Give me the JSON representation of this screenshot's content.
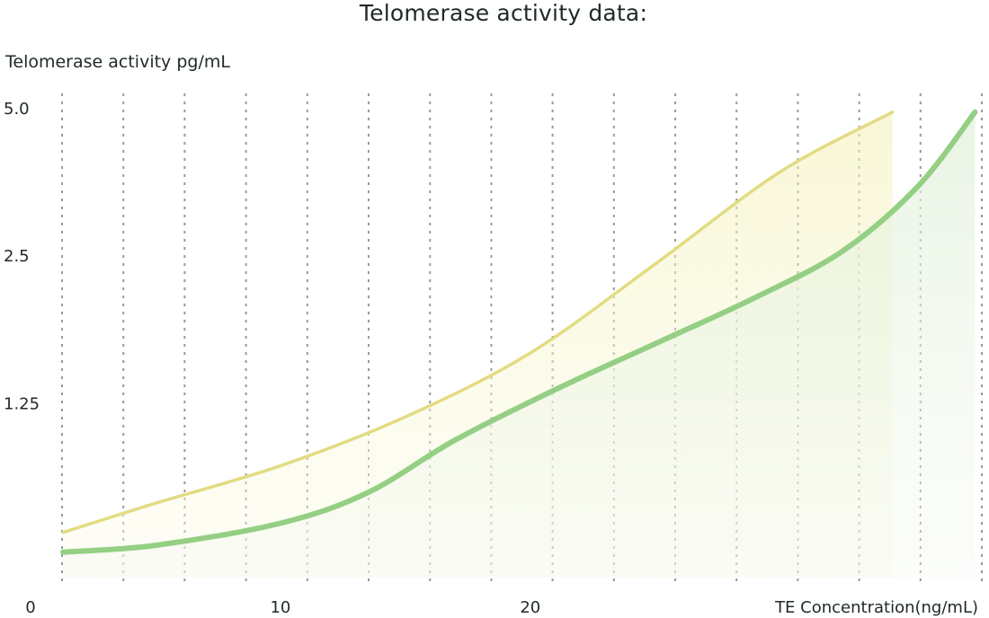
{
  "chart_data": {
    "type": "area",
    "title": "Telomerase activity data:",
    "ylabel": "Telomerase activity pg/mL",
    "xlabel": "TE Concentration(ng/mL)",
    "x_ticks": [
      0,
      10,
      20
    ],
    "y_ticks": [
      "1.25",
      "2.5",
      "5.0"
    ],
    "xlim": [
      0,
      38
    ],
    "y_scale": "log2",
    "ylim": [
      0.55,
      5.0
    ],
    "grid": "vertical dotted lines",
    "colors": {
      "yellow": "#e2dc82",
      "green": "#94cf84",
      "grid": "#9a9a9a",
      "text": "#1f2a24"
    },
    "series": [
      {
        "color": "#e2dc82",
        "x": [
          1.3,
          5,
          10,
          15,
          20,
          25,
          30,
          34.5
        ],
        "y": [
          0.68,
          0.78,
          0.93,
          1.17,
          1.58,
          2.4,
          3.7,
          4.9
        ]
      },
      {
        "color": "#94cf84",
        "x": [
          1.3,
          5,
          10,
          13.5,
          17,
          21,
          25,
          29,
          32.5,
          35.5,
          37.8
        ],
        "y": [
          0.62,
          0.64,
          0.71,
          0.82,
          1.05,
          1.33,
          1.65,
          2.05,
          2.55,
          3.45,
          4.9
        ]
      }
    ]
  }
}
